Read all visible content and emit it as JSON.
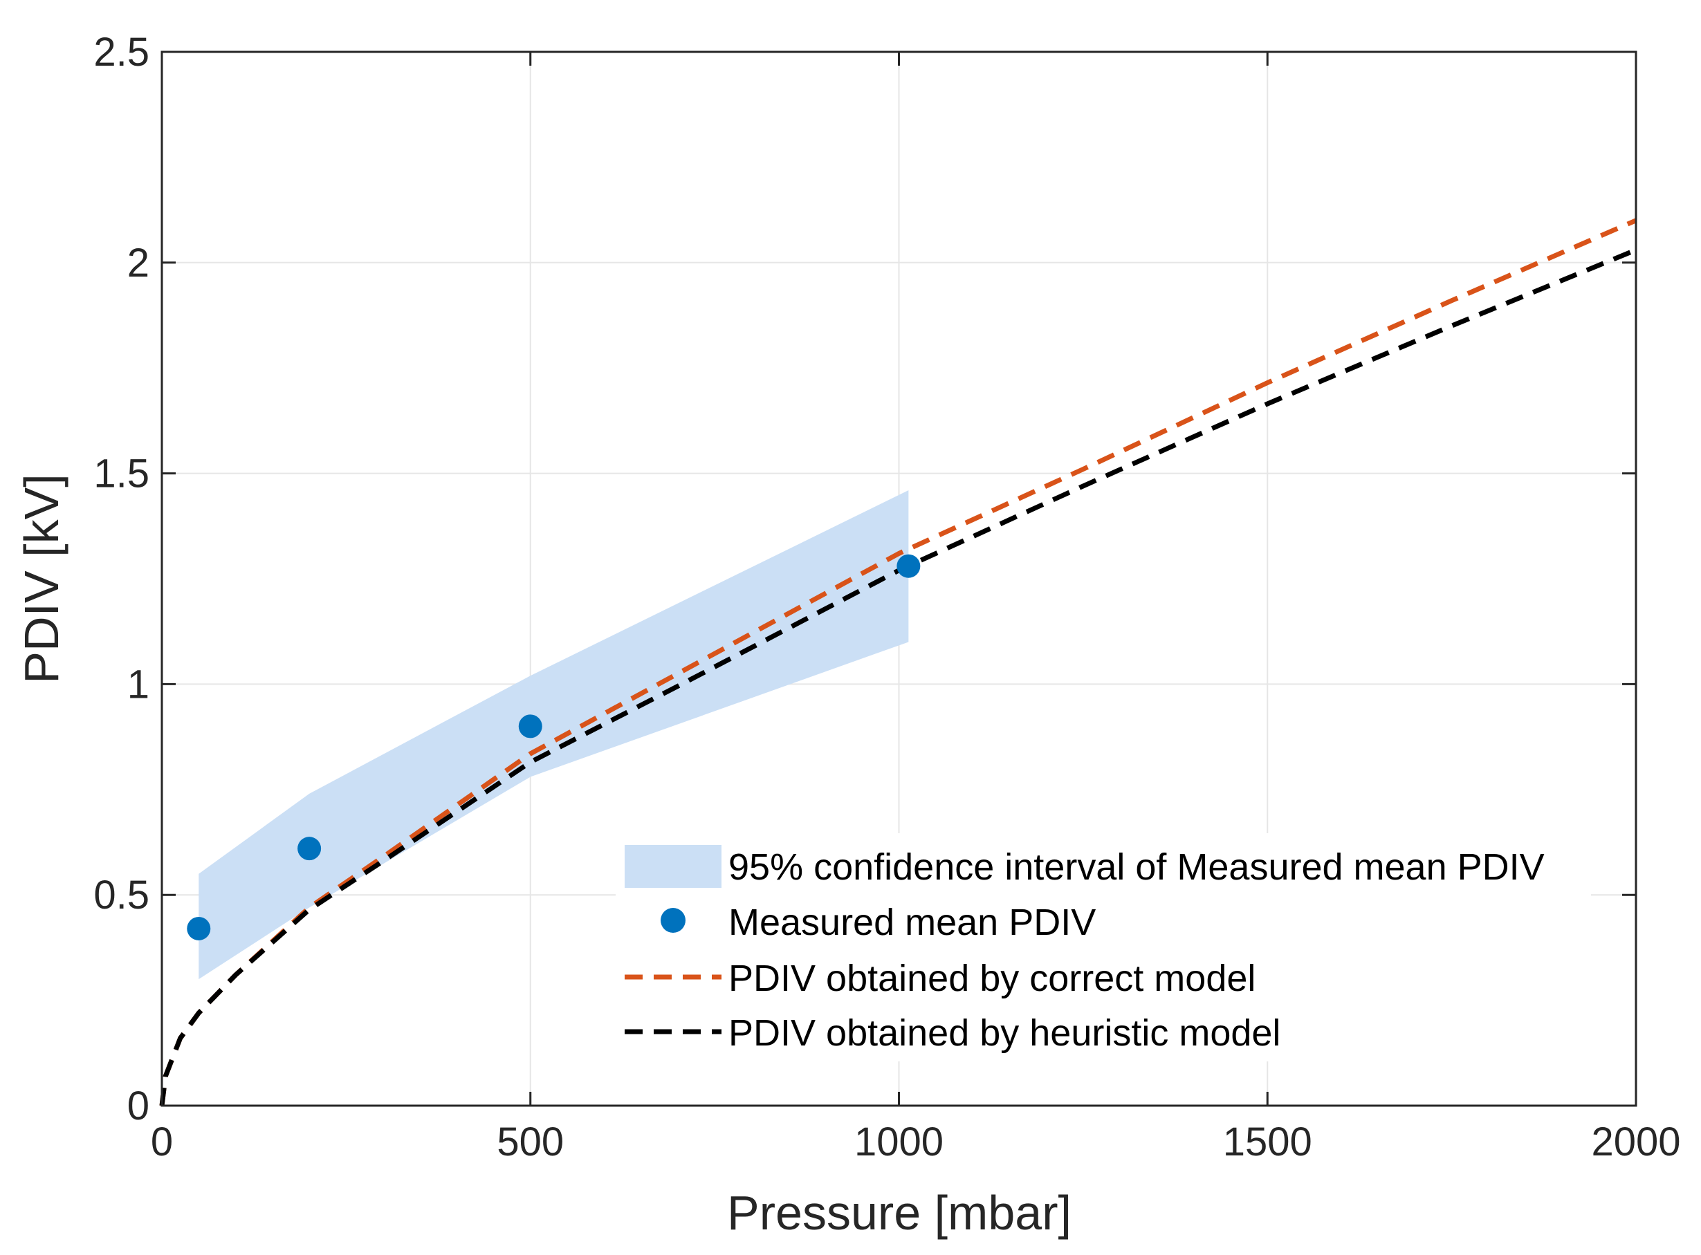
{
  "chart_data": {
    "type": "line",
    "xlabel": "Pressure [mbar]",
    "ylabel": "PDIV [kV]",
    "xlim": [
      0,
      2000
    ],
    "ylim": [
      0,
      2.5
    ],
    "xticks": [
      0,
      500,
      1000,
      1500,
      2000
    ],
    "yticks": [
      0,
      0.5,
      1,
      1.5,
      2,
      2.5
    ],
    "xtick_labels": [
      "0",
      "500",
      "1000",
      "1500",
      "2000"
    ],
    "ytick_labels": [
      "0",
      "0.5",
      "1",
      "1.5",
      "2",
      "2.5"
    ],
    "grid": true,
    "legend_location": "bottom-right",
    "series": [
      {
        "name": "95% confidence interval of Measured mean PDIV",
        "kind": "band",
        "color": "#cbdff5",
        "x": [
          50,
          200,
          500,
          1013
        ],
        "upper": [
          0.55,
          0.74,
          1.02,
          1.46
        ],
        "lower": [
          0.3,
          0.47,
          0.78,
          1.1
        ]
      },
      {
        "name": "Measured mean PDIV",
        "kind": "scatter",
        "color": "#0072bd",
        "x": [
          50,
          200,
          500,
          1013
        ],
        "y": [
          0.42,
          0.61,
          0.9,
          1.28
        ]
      },
      {
        "name": "PDIV obtained by correct model",
        "kind": "line",
        "style": "dashed",
        "color": "#d95319",
        "x": [
          0,
          5,
          25,
          50,
          100,
          200,
          300,
          500,
          700,
          1000,
          1250,
          1500,
          1750,
          2000
        ],
        "y": [
          0,
          0.07,
          0.16,
          0.22,
          0.31,
          0.47,
          0.59,
          0.835,
          1.025,
          1.31,
          1.51,
          1.715,
          1.91,
          2.1
        ]
      },
      {
        "name": "PDIV obtained by heuristic model",
        "kind": "line",
        "style": "dashed",
        "color": "#000000",
        "x": [
          0,
          5,
          25,
          50,
          100,
          200,
          300,
          500,
          700,
          1000,
          1250,
          1500,
          1750,
          2000
        ],
        "y": [
          0,
          0.07,
          0.16,
          0.22,
          0.31,
          0.465,
          0.58,
          0.815,
          0.995,
          1.27,
          1.47,
          1.665,
          1.85,
          2.03
        ]
      }
    ]
  }
}
